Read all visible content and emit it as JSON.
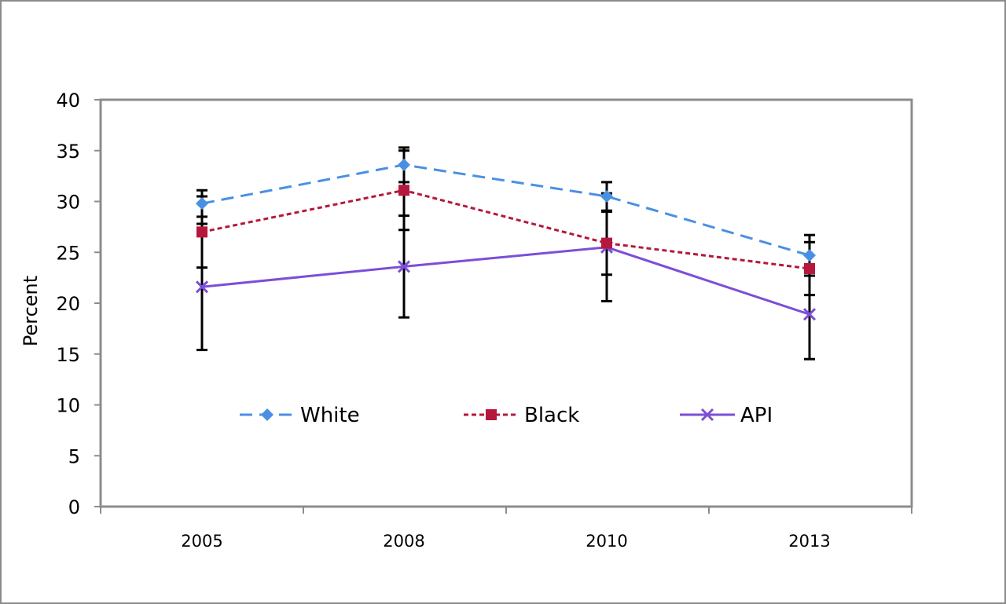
{
  "chart_data": {
    "type": "line",
    "title": "",
    "xlabel": "",
    "ylabel": "Percent",
    "categories": [
      "2005",
      "2008",
      "2010",
      "2013"
    ],
    "ylim": [
      0,
      40
    ],
    "yticks": [
      0,
      5,
      10,
      15,
      20,
      25,
      30,
      35,
      40
    ],
    "grid": false,
    "legend_position": "inside-center",
    "series": [
      {
        "name": "White",
        "values": [
          29.8,
          33.6,
          30.5,
          24.7
        ],
        "error": [
          1.3,
          1.7,
          1.4,
          2.0
        ],
        "color": "#4a90e2",
        "marker": "diamond",
        "line_style": "dashed"
      },
      {
        "name": "Black",
        "values": [
          27.0,
          31.1,
          25.9,
          23.4
        ],
        "error": [
          3.5,
          3.9,
          3.1,
          2.6
        ],
        "color": "#b5183c",
        "marker": "square",
        "line_style": "dotted"
      },
      {
        "name": "API",
        "values": [
          21.6,
          23.6,
          25.5,
          18.9
        ],
        "error": [
          6.2,
          5.0,
          5.3,
          4.4
        ],
        "color": "#7b4fd6",
        "marker": "x",
        "line_style": "solid"
      }
    ]
  }
}
